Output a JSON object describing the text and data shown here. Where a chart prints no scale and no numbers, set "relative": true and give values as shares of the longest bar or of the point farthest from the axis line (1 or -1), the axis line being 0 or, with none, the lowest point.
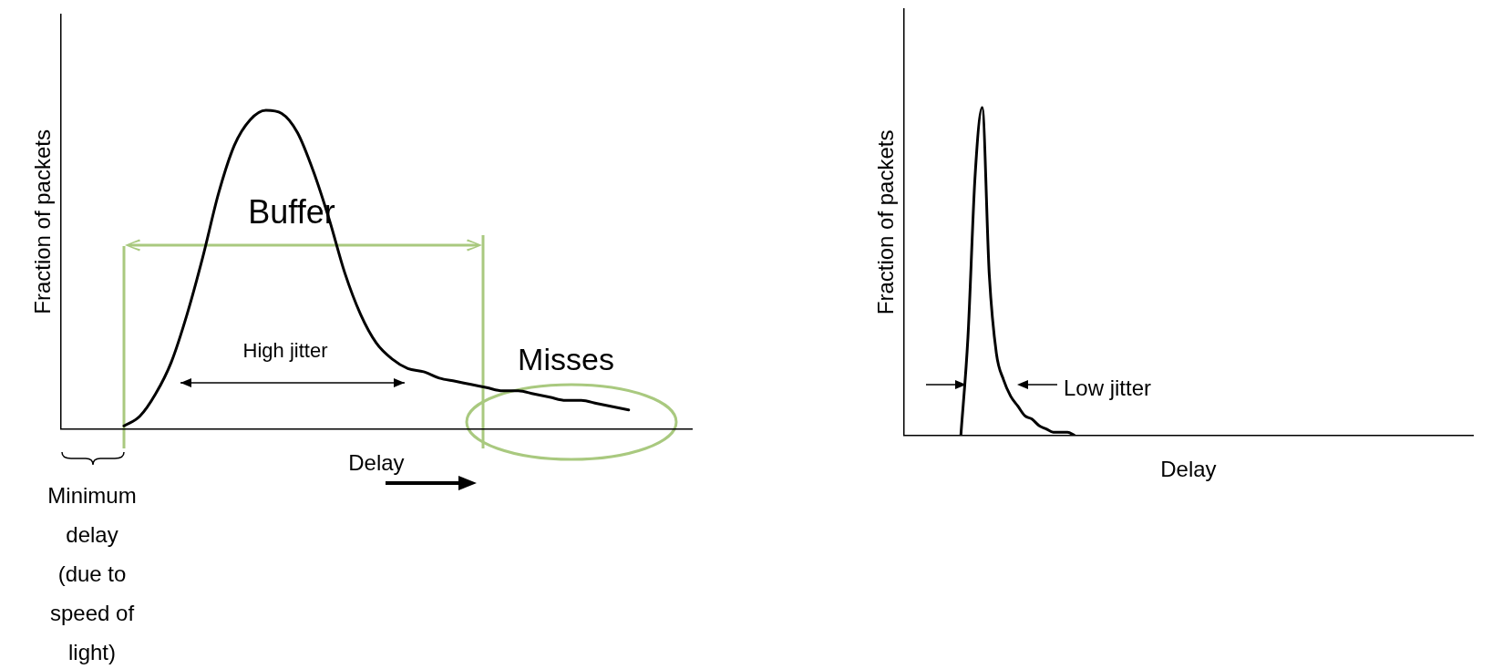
{
  "chart_data": [
    {
      "type": "line",
      "relative": true,
      "xlabel": "Delay",
      "ylabel": "Fraction of packets",
      "marker": "none",
      "legend": false,
      "categories": [
        null,
        null,
        null,
        null,
        null,
        null,
        null,
        null,
        null,
        null,
        null,
        null,
        null,
        null,
        null,
        null,
        null,
        null,
        null,
        null,
        null,
        null,
        null,
        null,
        null,
        null,
        null,
        null,
        null,
        null,
        null,
        null,
        null,
        null,
        null,
        null,
        null,
        null,
        null,
        null,
        null
      ],
      "series": [
        {
          "color": "#000000",
          "values": [
            null,
            null,
            null,
            null,
            0.01,
            0.04,
            0.11,
            0.21,
            0.36,
            0.54,
            0.74,
            0.89,
            0.97,
            1,
            0.99,
            0.93,
            0.81,
            0.66,
            0.49,
            0.36,
            0.27,
            0.22,
            0.19,
            0.18,
            0.16,
            0.15,
            0.14,
            0.13,
            0.12,
            0.12,
            0.11,
            0.1,
            0.09,
            0.09,
            0.08,
            0.07,
            0.06,
            null,
            null,
            null,
            null
          ]
        }
      ],
      "annotations": [
        "Buffer",
        "High jitter",
        "Misses",
        "Minimum delay (due to speed of light)"
      ]
    },
    {
      "type": "line",
      "relative": true,
      "xlabel": "Delay",
      "ylabel": "Fraction of packets",
      "marker": "none",
      "legend": false,
      "categories": [
        null,
        null,
        null,
        null,
        null,
        null,
        null,
        null,
        null,
        null,
        null,
        null,
        null,
        null,
        null,
        null,
        null,
        null,
        null,
        null,
        null,
        null,
        null,
        null,
        null,
        null,
        null,
        null,
        null,
        null,
        null,
        null,
        null,
        null,
        null,
        null,
        null,
        null,
        null,
        null,
        null,
        null,
        null,
        null,
        null,
        null,
        null,
        null,
        null,
        null,
        null,
        null,
        null,
        null,
        null,
        null,
        null,
        null,
        null,
        null,
        null,
        null,
        null,
        null,
        null,
        null,
        null,
        null,
        null,
        null,
        null,
        null,
        null,
        null,
        null,
        null,
        null,
        null,
        null,
        null,
        null
      ],
      "series": [
        {
          "color": "#000000",
          "values": [
            null,
            null,
            null,
            null,
            null,
            null,
            null,
            null,
            0,
            0.3,
            0.79,
            1,
            0.49,
            0.25,
            0.17,
            0.12,
            0.09,
            0.06,
            0.05,
            0.03,
            0.02,
            0.01,
            0.01,
            0.01,
            0,
            null,
            null,
            null,
            null,
            null,
            null,
            null,
            null,
            null,
            null,
            null,
            null,
            null,
            null,
            null,
            null,
            null,
            null,
            null,
            null,
            null,
            null,
            null,
            null,
            null,
            null,
            null,
            null,
            null,
            null,
            null,
            null,
            null,
            null,
            null,
            null,
            null,
            null,
            null,
            null,
            null,
            null,
            null,
            null,
            null,
            null,
            null,
            null,
            null,
            null,
            null,
            null,
            null,
            null,
            null,
            null
          ]
        }
      ],
      "annotations": [
        "Low jitter"
      ]
    }
  ]
}
